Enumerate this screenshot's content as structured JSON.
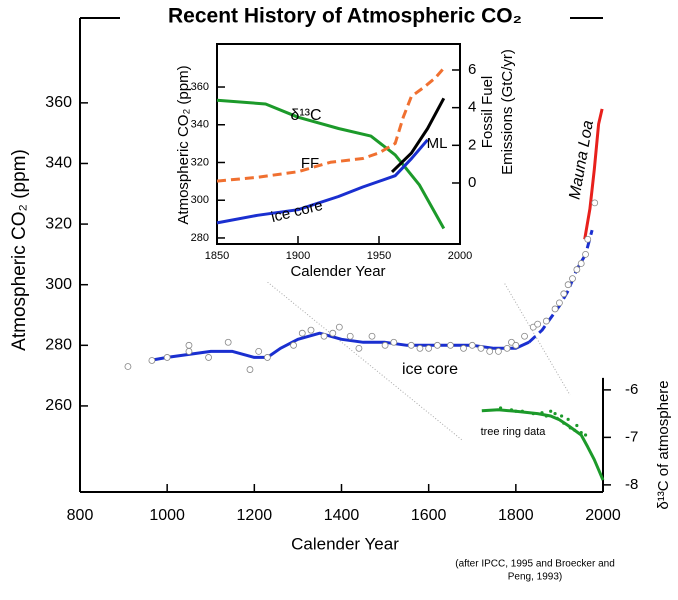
{
  "chart_data": [
    {
      "type": "line",
      "title": "Recent History of Atmospheric CO₂",
      "xlabel": "Calender Year",
      "ylabel": "Atmospheric CO₂ (ppm)",
      "y2label": "δ¹³C of atmosphere",
      "caption": [
        "(after IPCC, 1995 and Broecker and",
        "Peng, 1993)"
      ],
      "xlim": [
        800,
        2000
      ],
      "xticks": [
        800,
        1000,
        1200,
        1400,
        1600,
        1800,
        2000
      ],
      "ylim": [
        231.6,
        388
      ],
      "yticks": [
        260,
        280,
        300,
        320,
        340,
        360
      ],
      "y2lim": [
        -8.15,
        1.83
      ],
      "y2ticks": [
        -6,
        -7,
        -8
      ],
      "series": [
        {
          "name": "ice core",
          "color": "#1a2fd0",
          "line_style": "solid",
          "x": [
            960,
            1000,
            1050,
            1100,
            1150,
            1200,
            1230,
            1260,
            1300,
            1350,
            1400,
            1450,
            1500,
            1550,
            1600,
            1650,
            1700,
            1750,
            1800,
            1830
          ],
          "values": [
            275,
            276,
            277,
            278,
            278,
            276,
            276,
            279,
            282,
            284,
            282,
            281,
            281,
            280,
            280,
            280,
            280,
            279,
            279,
            281
          ]
        },
        {
          "color": "#1a2fd0",
          "line_style": "dashed",
          "x": [
            1830,
            1860,
            1880,
            1900,
            1920,
            1940,
            1960,
            1975
          ],
          "values": [
            281,
            285,
            289,
            293,
            298,
            305,
            310,
            318
          ]
        },
        {
          "name": "Mauna Loa",
          "color": "#e8201c",
          "line_style": "solid",
          "x": [
            1958,
            1970,
            1980,
            1990,
            1998
          ],
          "values": [
            315,
            325,
            338,
            353,
            358
          ]
        },
        {
          "color": "#888888",
          "marker": "open-circle",
          "x": [
            910,
            965,
            1000,
            1050,
            1050,
            1095,
            1140,
            1190,
            1210,
            1230,
            1290,
            1310,
            1330,
            1360,
            1380,
            1395,
            1420,
            1440,
            1470,
            1500,
            1520,
            1560,
            1580,
            1600,
            1620,
            1650,
            1680,
            1700,
            1720,
            1740,
            1760,
            1780,
            1790,
            1800,
            1820,
            1840,
            1850,
            1870,
            1890,
            1900,
            1910,
            1920,
            1930,
            1940,
            1950,
            1960,
            1965,
            1981
          ],
          "values": [
            273,
            275,
            276,
            278,
            280,
            276,
            281,
            272,
            278,
            276,
            280,
            284,
            285,
            283,
            284,
            286,
            283,
            279,
            283,
            280,
            281,
            280,
            279,
            279,
            280,
            280,
            279,
            280,
            279,
            278,
            278,
            279,
            281,
            280,
            283,
            286,
            287,
            288,
            292,
            294,
            297,
            300,
            302,
            305,
            307,
            310,
            315,
            327
          ]
        },
        {
          "name": "tree ring data",
          "color": "#1c9a2a",
          "line_style": "solid",
          "axis": "y2",
          "x": [
            1722,
            1760,
            1800,
            1850,
            1880,
            1900,
            1920,
            1950,
            1965,
            1980,
            1990,
            2000
          ],
          "values": [
            -6.44,
            -6.42,
            -6.45,
            -6.5,
            -6.55,
            -6.63,
            -6.75,
            -6.95,
            -7.2,
            -7.47,
            -7.68,
            -7.9
          ]
        },
        {
          "color": "#1c9a2a",
          "marker": "dot",
          "axis": "y2",
          "x": [
            1765,
            1790,
            1800,
            1815,
            1840,
            1860,
            1870,
            1880,
            1890,
            1895,
            1905,
            1910,
            1920,
            1925,
            1935,
            1940,
            1950,
            1960
          ],
          "values": [
            -6.38,
            -6.42,
            -6.45,
            -6.45,
            -6.5,
            -6.48,
            -6.55,
            -6.45,
            -6.5,
            -6.6,
            -6.55,
            -6.7,
            -6.62,
            -6.8,
            -6.85,
            -6.75,
            -6.9,
            -6.95
          ]
        }
      ]
    },
    {
      "type": "line",
      "xlabel": "Calender Year",
      "ylabel": "Atmospheric CO₂ (ppm)",
      "y2label": [
        "Fossil Fuel",
        "Emissions (GtC/yr)"
      ],
      "xlim": [
        1850,
        2000
      ],
      "xticks": [
        1850,
        1900,
        1950,
        2000
      ],
      "ylim": [
        276.8,
        382.8
      ],
      "yticks": [
        280,
        300,
        320,
        340,
        360
      ],
      "y2lim": [
        -3.24,
        7.38
      ],
      "y2ticks": [
        0,
        2,
        4,
        6
      ],
      "series": [
        {
          "name": "δ¹³C",
          "color": "#1c9a2a",
          "line_style": "solid",
          "x": [
            1850,
            1880,
            1900,
            1925,
            1945,
            1960,
            1975,
            1990
          ],
          "values": [
            353,
            351,
            344,
            338,
            334,
            324,
            308,
            285
          ]
        },
        {
          "name": "FF",
          "color": "#f07030",
          "line_style": "dashed",
          "axis": "y2",
          "x": [
            1850,
            1875,
            1900,
            1920,
            1940,
            1950,
            1960,
            1965,
            1970,
            1978,
            1985,
            1990
          ],
          "values": [
            0.1,
            0.3,
            0.6,
            1.1,
            1.3,
            1.6,
            2.1,
            3.5,
            4.6,
            5.1,
            5.6,
            6.1
          ]
        },
        {
          "name": "ice core",
          "color": "#1a2fd0",
          "line_style": "solid",
          "x": [
            1850,
            1875,
            1900,
            1925,
            1940,
            1960,
            1970,
            1980
          ],
          "values": [
            288,
            292,
            295,
            302,
            307,
            313,
            322,
            332
          ]
        },
        {
          "name": "ML",
          "color": "#000000",
          "line_style": "solid",
          "x": [
            1958,
            1970,
            1980,
            1990
          ],
          "values": [
            315,
            325,
            338,
            354
          ]
        }
      ]
    }
  ]
}
